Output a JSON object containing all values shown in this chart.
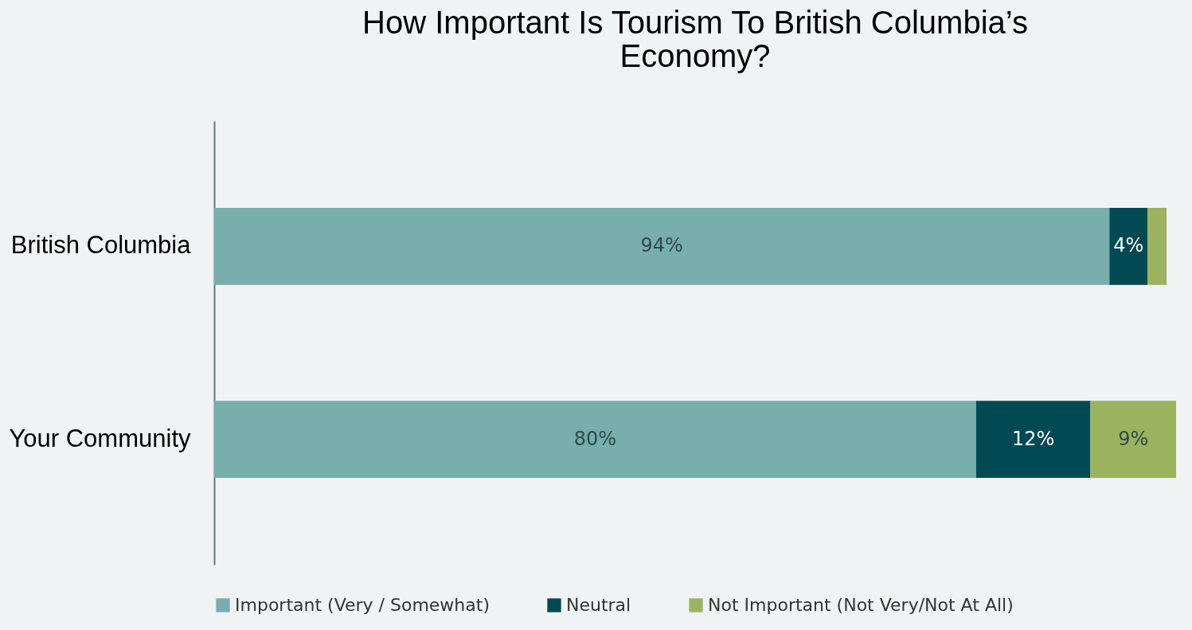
{
  "chart_data": {
    "type": "bar",
    "orientation": "horizontal",
    "stacked": true,
    "title": "How Important Is Tourism To British Columbia’s Economy?",
    "categories": [
      "British Columbia",
      "Your Community"
    ],
    "series": [
      {
        "name": "Important (Very / Somewhat)",
        "color": "#78aeab",
        "values": [
          94,
          80
        ],
        "value_labels": [
          "94%",
          "80%"
        ]
      },
      {
        "name": "Neutral",
        "color": "#024a53",
        "values": [
          4,
          12
        ],
        "value_labels": [
          "4%",
          "12%"
        ]
      },
      {
        "name": "Not Important (Not Very/Not At All)",
        "color": "#9bb25f",
        "values": [
          2,
          9
        ],
        "value_labels": [
          null,
          "9%"
        ]
      }
    ],
    "legend": "bottom",
    "grid": false,
    "tick_labels": "y"
  }
}
